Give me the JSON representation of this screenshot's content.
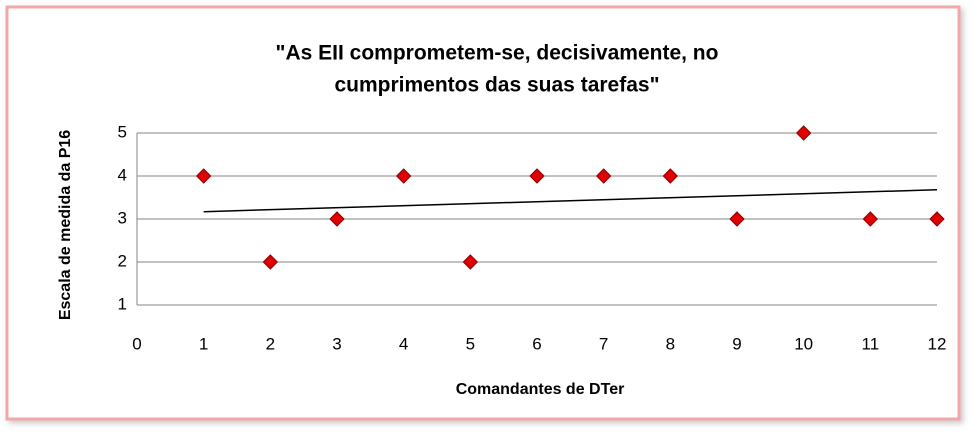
{
  "chart_data": {
    "type": "scatter",
    "title": [
      "\"As EII comprometem-se, decisivamente, no",
      "cumprimentos das suas tarefas\""
    ],
    "x_label": "Comandantes de DTer",
    "y_label": "Escala de medida da P16",
    "series": [
      {
        "name": "P16",
        "color": "#e00000",
        "x": [
          1,
          2,
          3,
          4,
          5,
          6,
          7,
          8,
          9,
          10,
          11,
          12
        ],
        "values": [
          4,
          2,
          3,
          4,
          2,
          4,
          4,
          4,
          3,
          5,
          3,
          3
        ]
      }
    ],
    "trendline": {
      "x": [
        1,
        12
      ],
      "values": [
        3.17,
        3.68
      ],
      "color": "#000000"
    },
    "xlim": [
      0,
      12
    ],
    "xticks": [
      0,
      1,
      2,
      3,
      4,
      5,
      6,
      7,
      8,
      9,
      10,
      11,
      12
    ],
    "ylim": [
      1,
      5
    ],
    "yticks": [
      1,
      2,
      3,
      4,
      5
    ],
    "grid": true
  }
}
